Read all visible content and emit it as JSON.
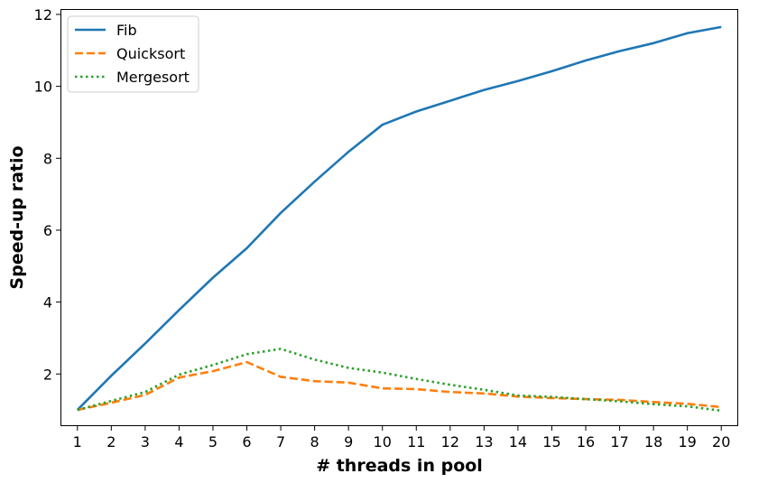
{
  "chart_data": {
    "type": "line",
    "xlabel": "# threads in pool",
    "ylabel": "Speed-up ratio",
    "x": [
      1,
      2,
      3,
      4,
      5,
      6,
      7,
      8,
      9,
      10,
      11,
      12,
      13,
      14,
      15,
      16,
      17,
      18,
      19,
      20
    ],
    "xlim": [
      0.5,
      20.5
    ],
    "ylim": [
      0.55,
      12.15
    ],
    "yticks": [
      2,
      4,
      6,
      8,
      10,
      12
    ],
    "grid": false,
    "legend_position": "top-left",
    "series": [
      {
        "name": "Fib",
        "color": "#1f77b4",
        "style": "solid",
        "values": [
          1.0,
          1.95,
          2.85,
          3.78,
          4.68,
          5.5,
          6.48,
          7.35,
          8.18,
          8.93,
          9.3,
          9.6,
          9.9,
          10.15,
          10.42,
          10.72,
          10.98,
          11.2,
          11.48,
          11.65
        ]
      },
      {
        "name": "Quicksort",
        "color": "#ff7f0e",
        "style": "dashed",
        "values": [
          1.0,
          1.2,
          1.42,
          1.9,
          2.08,
          2.33,
          1.92,
          1.8,
          1.76,
          1.6,
          1.58,
          1.5,
          1.46,
          1.37,
          1.33,
          1.3,
          1.28,
          1.22,
          1.17,
          1.08
        ]
      },
      {
        "name": "Mergesort",
        "color": "#2ca02c",
        "style": "dotted",
        "values": [
          1.0,
          1.25,
          1.5,
          1.98,
          2.25,
          2.55,
          2.7,
          2.4,
          2.17,
          2.04,
          1.86,
          1.7,
          1.56,
          1.4,
          1.36,
          1.3,
          1.24,
          1.16,
          1.1,
          0.98
        ]
      }
    ]
  }
}
